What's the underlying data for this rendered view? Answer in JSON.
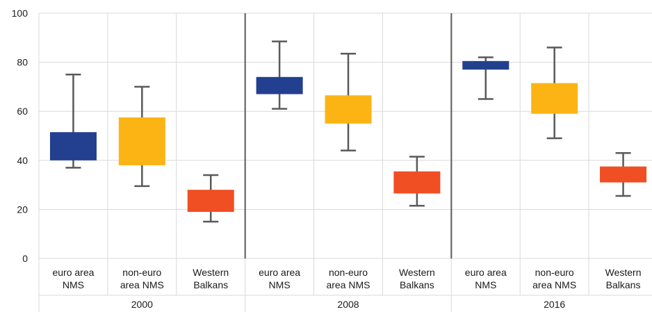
{
  "chart_data": {
    "type": "box",
    "y_ticks": [
      "0",
      "20",
      "40",
      "60",
      "80",
      "100"
    ],
    "ylim": [
      0,
      100
    ],
    "grid": true,
    "colors": {
      "euro area NMS": "#233f8f",
      "non-euro area NMS": "#fcb414",
      "Western Balkans": "#f04e23",
      "whisker": "#595959",
      "gridline": "#d9d9d9",
      "separator": "#595959"
    },
    "groups": [
      {
        "label": "2000",
        "boxes": [
          {
            "line1": "euro area",
            "line2": "NMS",
            "series": "euro area NMS",
            "min": 37,
            "q1": 40,
            "q3": 51.5,
            "max": 75
          },
          {
            "line1": "non-euro",
            "line2": "area NMS",
            "series": "non-euro area NMS",
            "min": 29.5,
            "q1": 38,
            "q3": 57.5,
            "max": 70
          },
          {
            "line1": "Western",
            "line2": "Balkans",
            "series": "Western Balkans",
            "min": 15,
            "q1": 19,
            "q3": 28,
            "max": 34
          }
        ]
      },
      {
        "label": "2008",
        "boxes": [
          {
            "line1": "euro area",
            "line2": "NMS",
            "series": "euro area NMS",
            "min": 61,
            "q1": 67,
            "q3": 74,
            "max": 88.5
          },
          {
            "line1": "non-euro",
            "line2": "area NMS",
            "series": "non-euro area NMS",
            "min": 44,
            "q1": 55,
            "q3": 66.5,
            "max": 83.5
          },
          {
            "line1": "Western",
            "line2": "Balkans",
            "series": "Western Balkans",
            "min": 21.5,
            "q1": 26.5,
            "q3": 35.5,
            "max": 41.5
          }
        ]
      },
      {
        "label": "2016",
        "boxes": [
          {
            "line1": "euro area",
            "line2": "NMS",
            "series": "euro area NMS",
            "min": 65,
            "q1": 77,
            "q3": 80.5,
            "max": 82
          },
          {
            "line1": "non-euro",
            "line2": "area NMS",
            "series": "non-euro area NMS",
            "min": 49,
            "q1": 59,
            "q3": 71.5,
            "max": 86
          },
          {
            "line1": "Western",
            "line2": "Balkans",
            "series": "Western Balkans",
            "min": 25.5,
            "q1": 31,
            "q3": 37.5,
            "max": 43
          }
        ]
      }
    ]
  }
}
